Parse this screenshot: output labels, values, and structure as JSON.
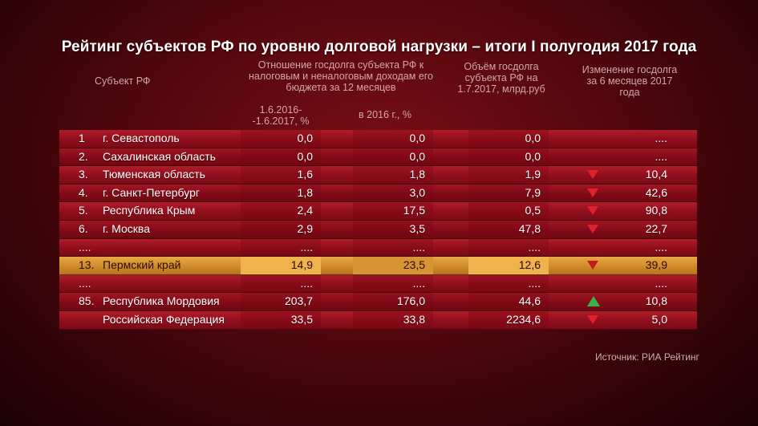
{
  "title": "Рейтинг субъектов РФ по уровню долговой нагрузки – итоги I полугодия 2017 года",
  "headers": {
    "subject": "Субъект РФ",
    "ratio": "Отношение госдолга субъекта РФ к налоговым и неналоговым доходам его бюджета за 12 месяцев",
    "col1": "1.6.2016- -1.6.2017, %",
    "col2": "в 2016 г., %",
    "volume": "Объём госдолга субъекта РФ на 1.7.2017, млрд.руб",
    "change": "Изменение госдолга за 6 месяцев 2017 года"
  },
  "source": "Источник: РИА Рейтинг",
  "colors": {
    "row_red": "#9b1422",
    "row_highlight": "#e0a040",
    "arrow_down": "#e0202a",
    "arrow_up": "#3cb34a"
  },
  "chart_data": {
    "type": "table",
    "title": "Рейтинг субъектов РФ по уровню долговой нагрузки – итоги I полугодия 2017 года",
    "columns": [
      "",
      "Субъект РФ",
      "1.6.2016- -1.6.2017, %",
      "в 2016 г., %",
      "Объём госдолга субъекта РФ на 1.7.2017, млрд.руб",
      "Изменение госдолга за 6 месяцев 2017 года"
    ],
    "rows": [
      {
        "rank": "1",
        "name": "г. Севастополь",
        "v1": "0,0",
        "v2": "0,0",
        "v3": "0,0",
        "v4": "....",
        "trend": ""
      },
      {
        "rank": "2.",
        "name": "Сахалинская область",
        "v1": "0,0",
        "v2": "0,0",
        "v3": "0,0",
        "v4": "....",
        "trend": ""
      },
      {
        "rank": "3.",
        "name": "Тюменская область",
        "v1": "1,6",
        "v2": "1,8",
        "v3": "1,9",
        "v4": "10,4",
        "trend": "down"
      },
      {
        "rank": "4.",
        "name": "г. Санкт-Петербург",
        "v1": "1,8",
        "v2": "3,0",
        "v3": "7,9",
        "v4": "42,6",
        "trend": "down"
      },
      {
        "rank": "5.",
        "name": "Республика Крым",
        "v1": "2,4",
        "v2": "17,5",
        "v3": "0,5",
        "v4": "90,8",
        "trend": "down"
      },
      {
        "rank": "6.",
        "name": "г. Москва",
        "v1": "2,9",
        "v2": "3,5",
        "v3": "47,8",
        "v4": "22,7",
        "trend": "down"
      },
      {
        "rank": "....",
        "name": "",
        "v1": "....",
        "v2": "....",
        "v3": "....",
        "v4": "....",
        "trend": ""
      },
      {
        "rank": "13.",
        "name": "Пермский край",
        "v1": "14,9",
        "v2": "23,5",
        "v3": "12,6",
        "v4": "39,9",
        "trend": "down",
        "highlight": true
      },
      {
        "rank": "....",
        "name": "",
        "v1": "....",
        "v2": "....",
        "v3": "....",
        "v4": "....",
        "trend": ""
      },
      {
        "rank": "85.",
        "name": "Республика Мордовия",
        "v1": "203,7",
        "v2": "176,0",
        "v3": "44,6",
        "v4": "10,8",
        "trend": "up"
      },
      {
        "rank": "",
        "name": "Российская Федерация",
        "v1": "33,5",
        "v2": "33,8",
        "v3": "2234,6",
        "v4": "5,0",
        "trend": "down"
      }
    ]
  }
}
